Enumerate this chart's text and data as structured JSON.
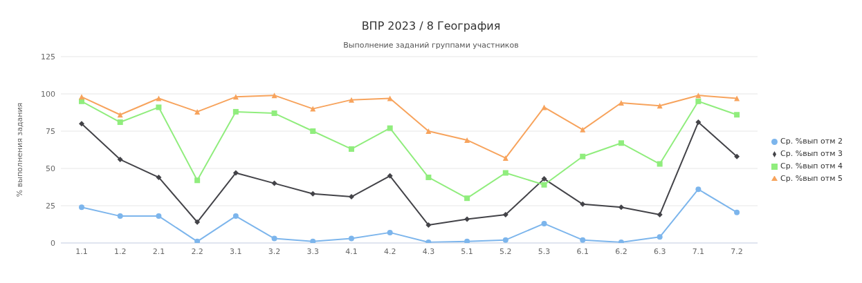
{
  "chart_data": {
    "type": "line",
    "title": "ВПР 2023 / 8 География",
    "subtitle": "Выполнение заданий группами участников",
    "ylabel": "% выполнения задания",
    "categories": [
      "1.1",
      "1.2",
      "2.1",
      "2.2",
      "3.1",
      "3.2",
      "3.3",
      "4.1",
      "4.2",
      "4.3",
      "5.1",
      "5.2",
      "5.3",
      "6.1",
      "6.2",
      "6.3",
      "7.1",
      "7.2"
    ],
    "series": [
      {
        "name": "Ср. %вып отм 2",
        "color": "#7cb5ec",
        "marker": "circle",
        "values": [
          24,
          18,
          18,
          1,
          18,
          3,
          1,
          3,
          7,
          0.5,
          1,
          2,
          13,
          2,
          0.5,
          4,
          36,
          20.5
        ]
      },
      {
        "name": "Ср. %вып отм 3",
        "color": "#434348",
        "marker": "diamond",
        "values": [
          80,
          56,
          44,
          14,
          47,
          40,
          33,
          31,
          45,
          12,
          16,
          19,
          43,
          26,
          24,
          19,
          81,
          58
        ]
      },
      {
        "name": "Ср. %вып отм 4",
        "color": "#90ed7d",
        "marker": "square",
        "values": [
          95,
          81,
          91,
          42,
          88,
          87,
          75,
          63,
          77,
          44,
          30,
          47,
          39,
          58,
          67,
          53,
          95,
          86
        ]
      },
      {
        "name": "Ср. %вып отм 5",
        "color": "#f7a35c",
        "marker": "triangle",
        "values": [
          98,
          86,
          97,
          88,
          98,
          99,
          90,
          96,
          97,
          75,
          69,
          57,
          91,
          76,
          94,
          92,
          99,
          97
        ]
      }
    ],
    "ylim": [
      0,
      125
    ],
    "yticks": [
      0,
      25,
      50,
      75,
      100,
      125
    ],
    "grid": "y",
    "legend": "right",
    "line_style": "solid"
  }
}
